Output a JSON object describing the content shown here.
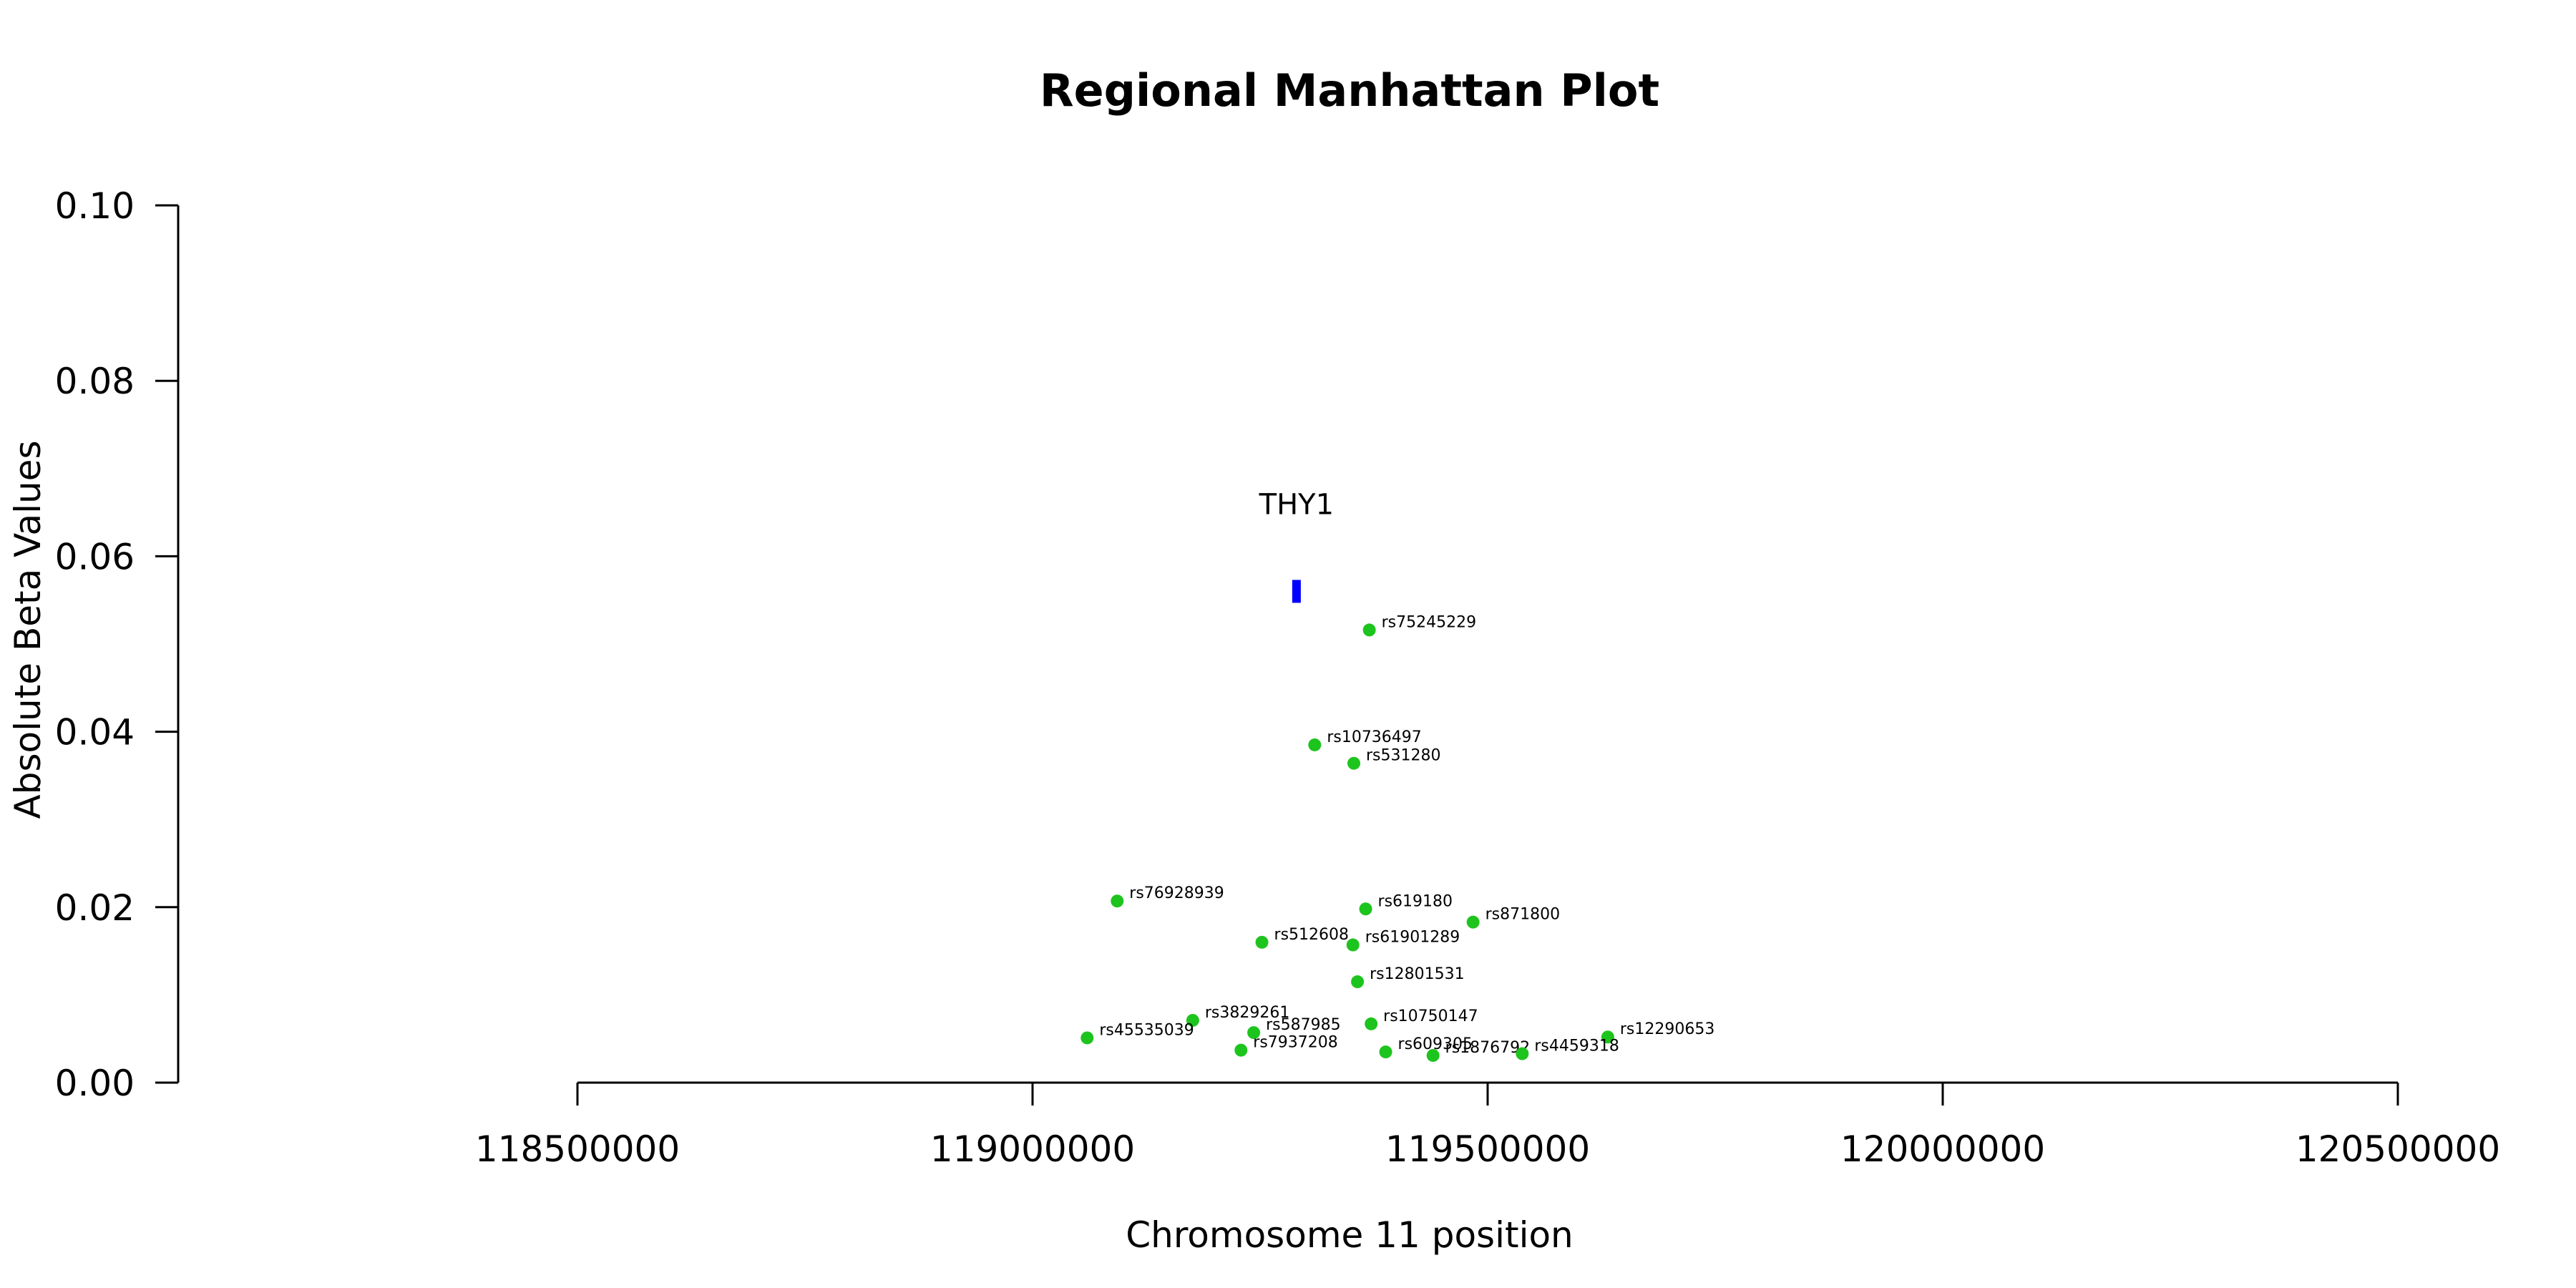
{
  "chart_data": {
    "type": "scatter",
    "title": "Regional Manhattan Plot",
    "xlabel": "Chromosome 11 position",
    "ylabel": "Absolute Beta Values",
    "xlim": [
      118500000,
      120500000
    ],
    "ylim": [
      0,
      0.1
    ],
    "x_ticks": [
      "118500000",
      "119000000",
      "119500000",
      "120000000",
      "120500000"
    ],
    "y_ticks": [
      "0.00",
      "0.02",
      "0.04",
      "0.06",
      "0.08",
      "0.10"
    ],
    "grid": false,
    "point_color": "#1ec41e",
    "gene_color": "#0000ff",
    "points": [
      {
        "label": "rs75245229",
        "x": 119370000,
        "y": 0.0516
      },
      {
        "label": "rs10736497",
        "x": 119310000,
        "y": 0.0385
      },
      {
        "label": "rs531280",
        "x": 119353000,
        "y": 0.0364
      },
      {
        "label": "rs76928939",
        "x": 119093000,
        "y": 0.0207
      },
      {
        "label": "rs619180",
        "x": 119366000,
        "y": 0.0198
      },
      {
        "label": "rs871800",
        "x": 119484000,
        "y": 0.0183
      },
      {
        "label": "rs512608",
        "x": 119252000,
        "y": 0.016
      },
      {
        "label": "rs61901289",
        "x": 119352000,
        "y": 0.0157
      },
      {
        "label": "rs12801531",
        "x": 119357000,
        "y": 0.0115
      },
      {
        "label": "rs3829261",
        "x": 119176000,
        "y": 0.0071
      },
      {
        "label": "rs587985",
        "x": 119243000,
        "y": 0.0057
      },
      {
        "label": "rs10750147",
        "x": 119372000,
        "y": 0.0067
      },
      {
        "label": "rs45535039",
        "x": 119060000,
        "y": 0.0051
      },
      {
        "label": "rs12290653",
        "x": 119632000,
        "y": 0.0052
      },
      {
        "label": "rs7937208",
        "x": 119229000,
        "y": 0.0037
      },
      {
        "label": "rs609305",
        "x": 119388000,
        "y": 0.0035
      },
      {
        "label": "rs1876792",
        "x": 119440000,
        "y": 0.0031
      },
      {
        "label": "rs4459318",
        "x": 119538000,
        "y": 0.0033
      }
    ],
    "gene": {
      "label": "THY1",
      "x_start": 119287000,
      "x_end": 119293000,
      "y": 0.056
    }
  }
}
